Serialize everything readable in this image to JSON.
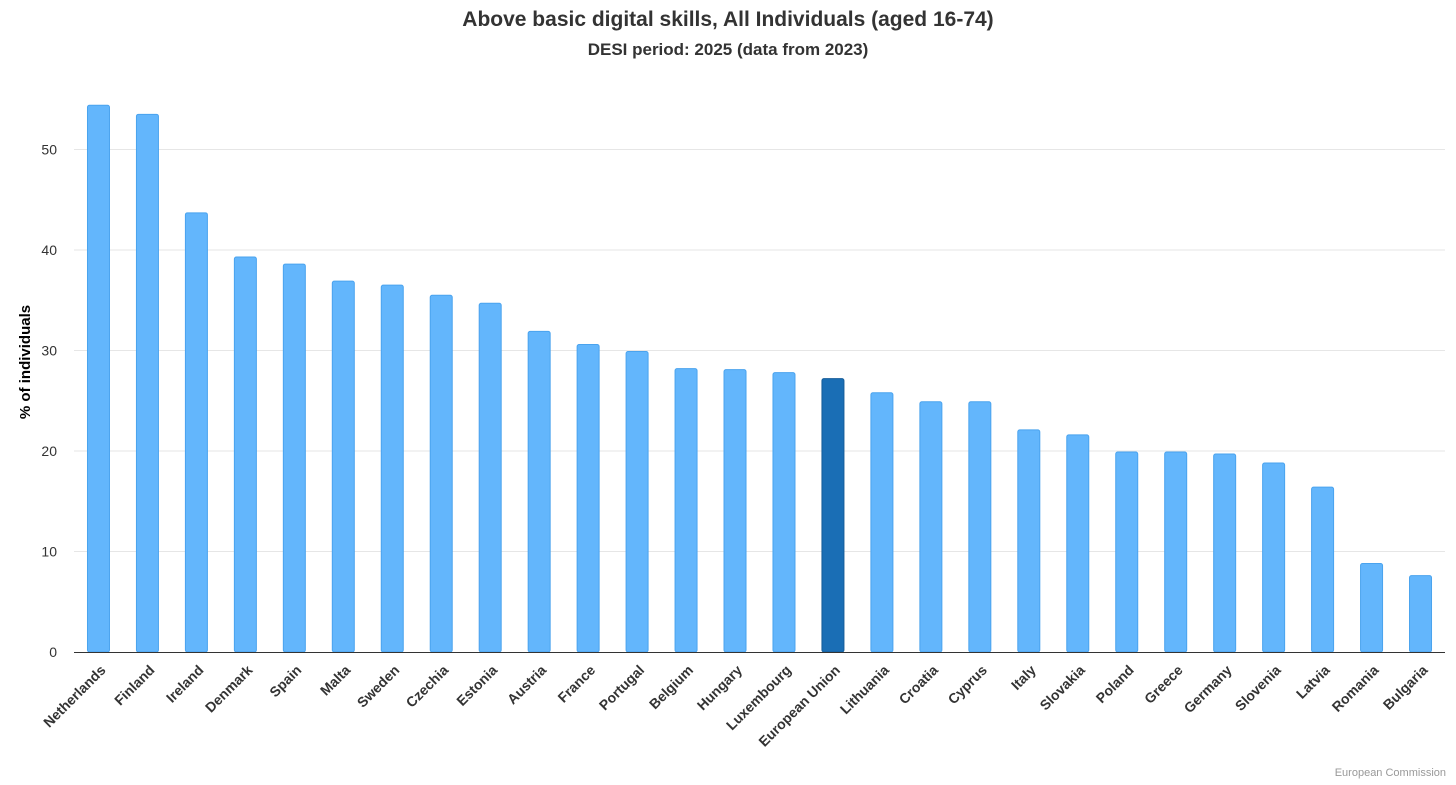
{
  "chart_data": {
    "type": "bar",
    "title": "Above basic digital skills, All Individuals (aged 16-74)",
    "subtitle": "DESI period: 2025 (data from 2023)",
    "xlabel": "",
    "ylabel": "% of individuals",
    "ylim": [
      0,
      55
    ],
    "yticks": [
      0,
      10,
      20,
      30,
      40,
      50
    ],
    "grid": true,
    "legend": "none",
    "categories": [
      "Netherlands",
      "Finland",
      "Ireland",
      "Denmark",
      "Spain",
      "Malta",
      "Sweden",
      "Czechia",
      "Estonia",
      "Austria",
      "France",
      "Portugal",
      "Belgium",
      "Hungary",
      "Luxembourg",
      "European Union",
      "Lithuania",
      "Croatia",
      "Cyprus",
      "Italy",
      "Slovakia",
      "Poland",
      "Greece",
      "Germany",
      "Slovenia",
      "Latvia",
      "Romania",
      "Bulgaria"
    ],
    "values": [
      54.4,
      53.5,
      43.7,
      39.3,
      38.6,
      36.9,
      36.5,
      35.5,
      34.7,
      31.9,
      30.6,
      29.9,
      28.2,
      28.1,
      27.8,
      27.2,
      25.8,
      24.9,
      24.9,
      22.1,
      21.6,
      19.9,
      19.9,
      19.7,
      18.8,
      16.4,
      8.8,
      7.6
    ],
    "colors": {
      "default": "#63b6fc",
      "highlight": "#1a6eb5",
      "highlight_category": "European Union"
    }
  },
  "credits": "European Commission"
}
